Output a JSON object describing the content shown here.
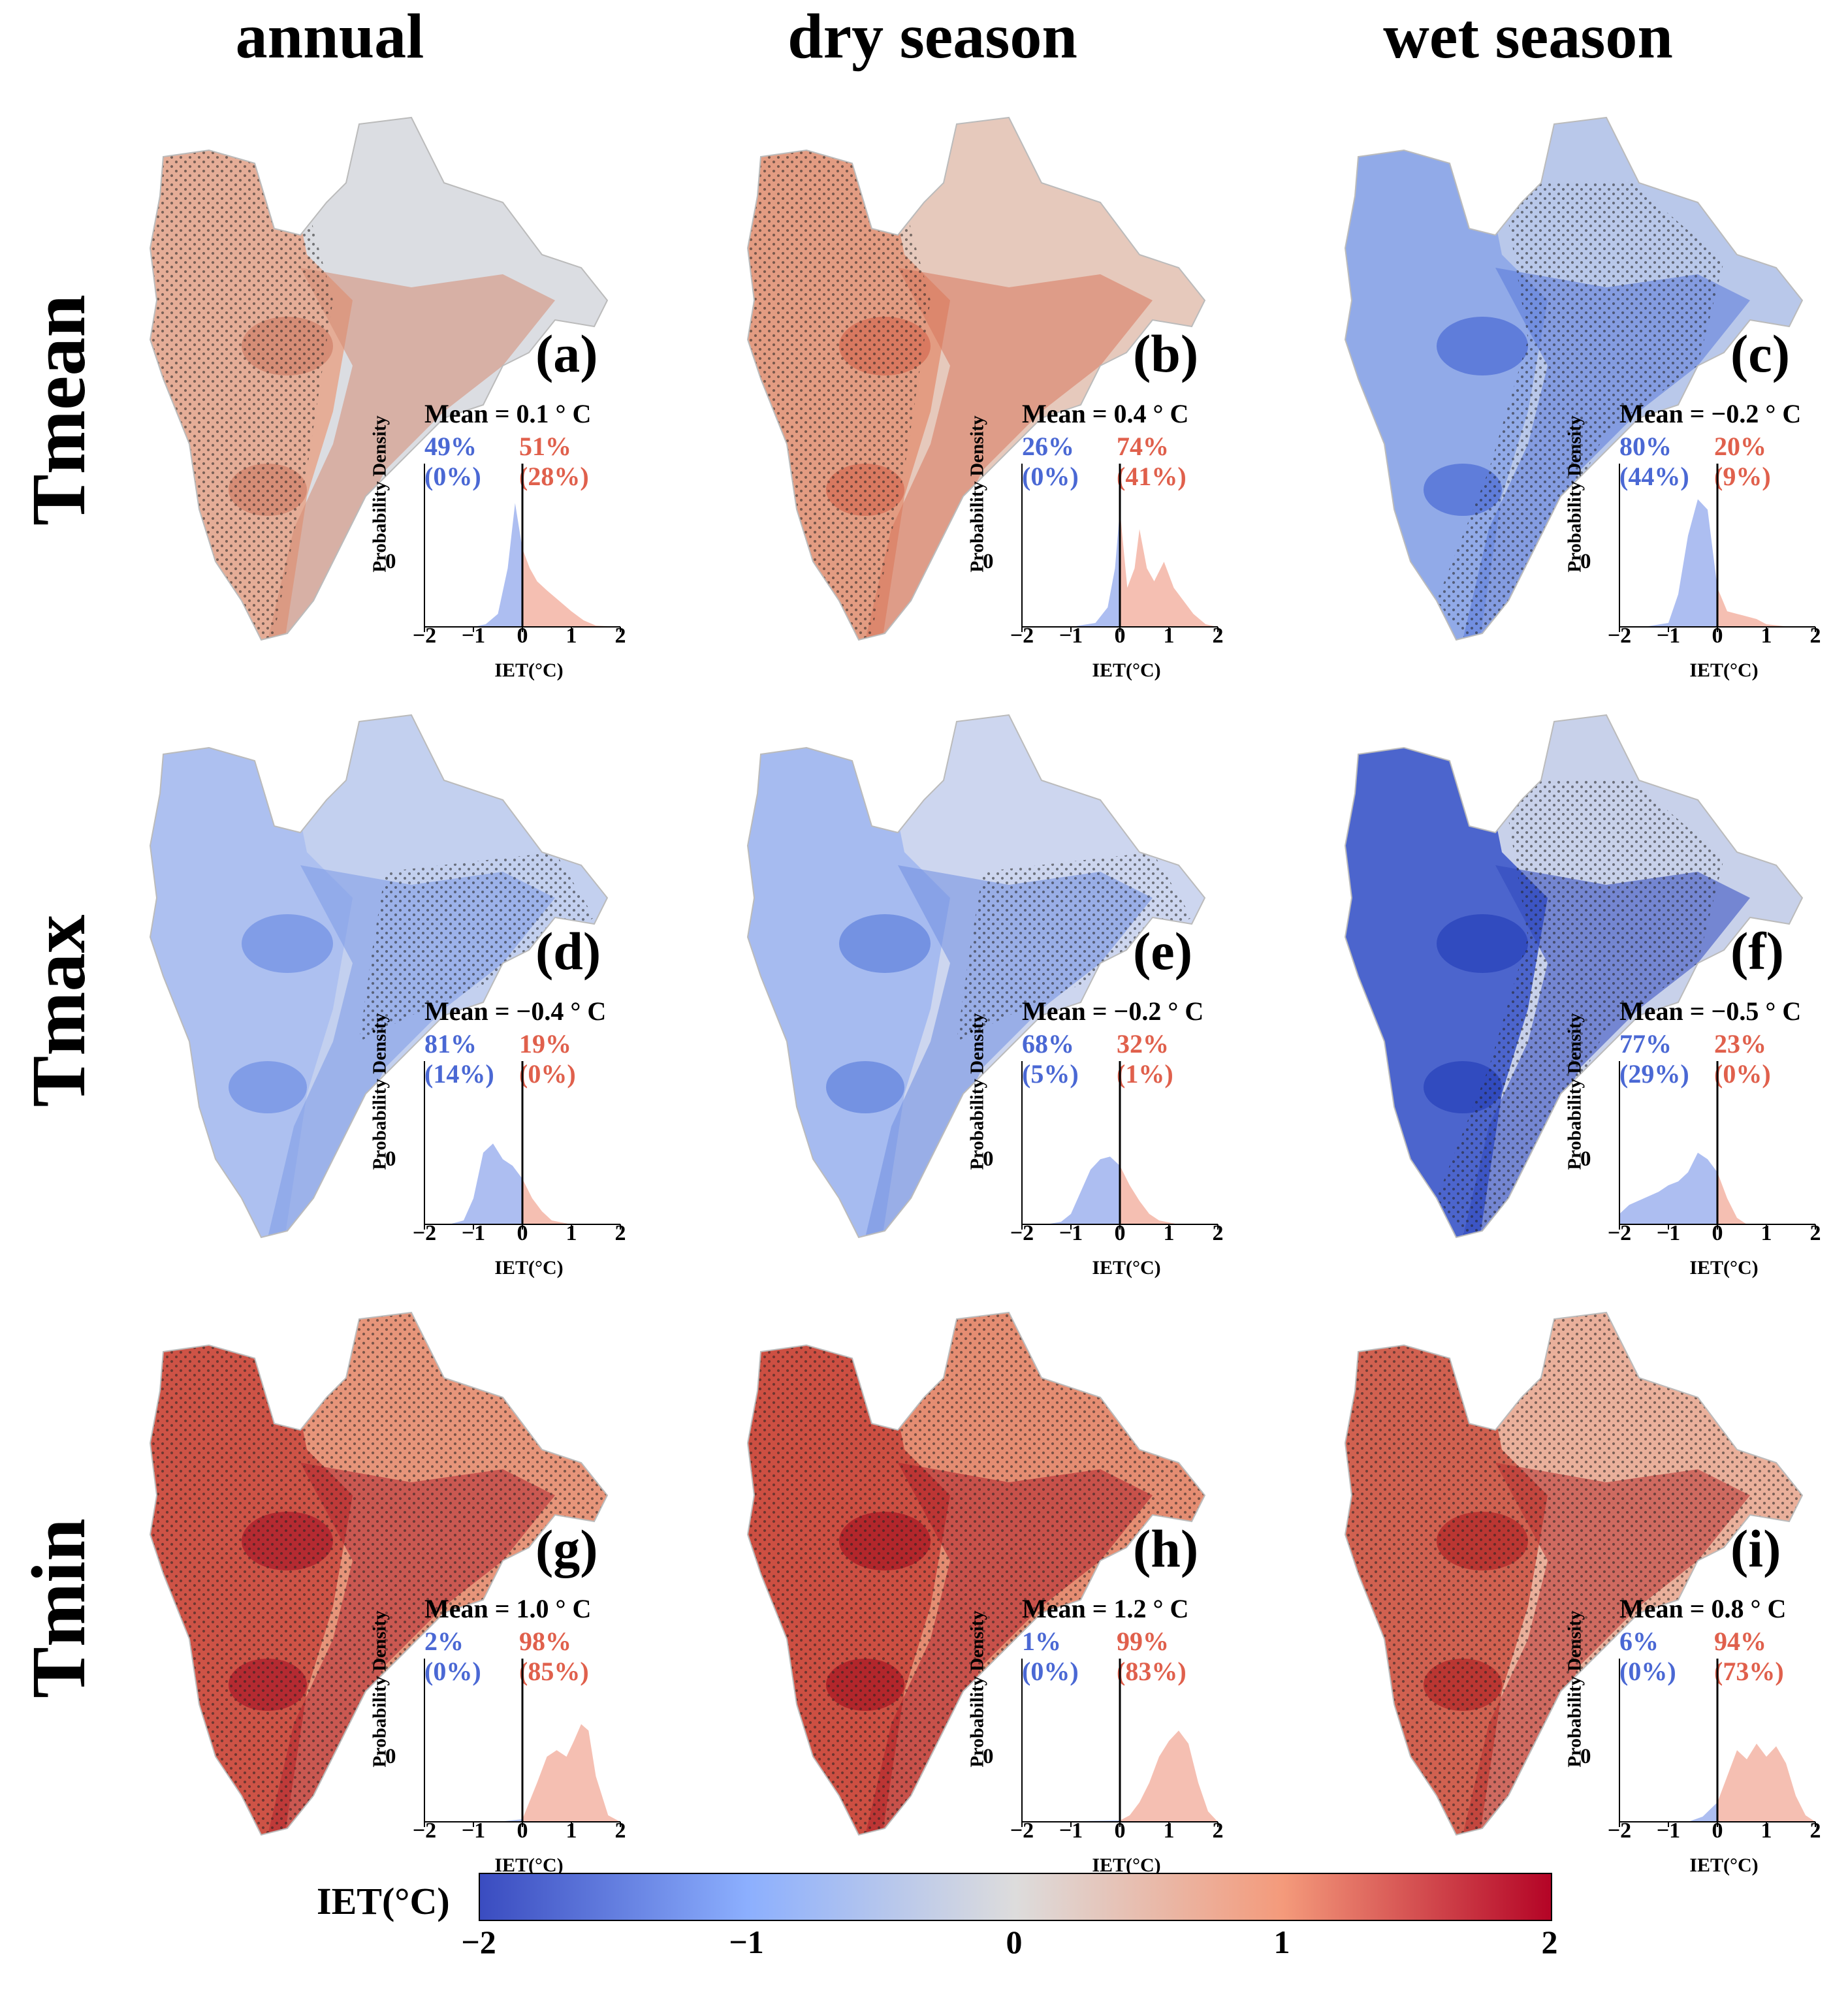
{
  "columns": [
    "annual",
    "dry season",
    "wet season"
  ],
  "rows": [
    "Tmean",
    "Tmax",
    "Tmin"
  ],
  "colorbar": {
    "label": "IET(°C)",
    "ticks": [
      "−2",
      "−1",
      "0",
      "1",
      "2"
    ],
    "colors": [
      "#3a4cc0",
      "#8caffe",
      "#dddcdc",
      "#f49a7b",
      "#b40426"
    ]
  },
  "inset_axes": {
    "ylabel": "Probability Density",
    "xlabel": "IET(°C)",
    "ytick": "0",
    "xticks": [
      "−2",
      "−1",
      "0",
      "1",
      "2"
    ]
  },
  "chart_data": [
    {
      "type": "area",
      "panel": "(a)",
      "row": "Tmean",
      "column": "annual",
      "mean_text": "Mean = 0.1 ° C",
      "neg_pct": "49%",
      "neg_sig": "(0%)",
      "pos_pct": "51%",
      "pos_sig": "(28%)",
      "xlim": [
        -2,
        2
      ],
      "x": [
        -2,
        -1.5,
        -1,
        -0.75,
        -0.5,
        -0.3,
        -0.15,
        0,
        0.15,
        0.3,
        0.5,
        0.75,
        1,
        1.25,
        1.5,
        2
      ],
      "density": [
        0,
        0,
        0,
        0.02,
        0.1,
        0.45,
        0.95,
        0.6,
        0.45,
        0.35,
        0.28,
        0.2,
        0.12,
        0.05,
        0.01,
        0
      ]
    },
    {
      "type": "area",
      "panel": "(b)",
      "row": "Tmean",
      "column": "dry season",
      "mean_text": "Mean = 0.4 ° C",
      "neg_pct": "26%",
      "neg_sig": "(0%)",
      "pos_pct": "74%",
      "pos_sig": "(41%)",
      "xlim": [
        -2,
        2
      ],
      "x": [
        -2,
        -1.5,
        -1,
        -0.5,
        -0.25,
        -0.1,
        0,
        0.15,
        0.3,
        0.4,
        0.55,
        0.7,
        0.9,
        1.1,
        1.3,
        1.5,
        1.75,
        2
      ],
      "density": [
        0,
        0,
        0,
        0.03,
        0.15,
        0.45,
        0.9,
        0.3,
        0.45,
        0.75,
        0.45,
        0.35,
        0.5,
        0.3,
        0.2,
        0.1,
        0.02,
        0
      ]
    },
    {
      "type": "area",
      "panel": "(c)",
      "row": "Tmean",
      "column": "wet season",
      "mean_text": "Mean = −0.2 ° C",
      "neg_pct": "80%",
      "neg_sig": "(44%)",
      "pos_pct": "20%",
      "pos_sig": "(9%)",
      "xlim": [
        -2,
        2
      ],
      "x": [
        -2,
        -1.5,
        -1,
        -0.8,
        -0.6,
        -0.4,
        -0.2,
        0,
        0.2,
        0.4,
        0.6,
        0.8,
        1,
        1.5,
        2
      ],
      "density": [
        0,
        0,
        0.03,
        0.25,
        0.7,
        0.98,
        0.9,
        0.3,
        0.12,
        0.1,
        0.08,
        0.06,
        0.02,
        0,
        0
      ]
    },
    {
      "type": "area",
      "panel": "(d)",
      "row": "Tmax",
      "column": "annual",
      "mean_text": "Mean = −0.4 ° C",
      "neg_pct": "81%",
      "neg_sig": "(14%)",
      "pos_pct": "19%",
      "pos_sig": "(0%)",
      "xlim": [
        -2,
        2
      ],
      "x": [
        -2,
        -1.5,
        -1.2,
        -1,
        -0.8,
        -0.6,
        -0.4,
        -0.2,
        0,
        0.2,
        0.4,
        0.6,
        1,
        1.5,
        2
      ],
      "density": [
        0,
        0,
        0.03,
        0.2,
        0.55,
        0.62,
        0.5,
        0.45,
        0.35,
        0.2,
        0.1,
        0.03,
        0,
        0,
        0
      ]
    },
    {
      "type": "area",
      "panel": "(e)",
      "row": "Tmax",
      "column": "dry season",
      "mean_text": "Mean = −0.2 ° C",
      "neg_pct": "68%",
      "neg_sig": "(5%)",
      "pos_pct": "32%",
      "pos_sig": "(1%)",
      "xlim": [
        -2,
        2
      ],
      "x": [
        -2,
        -1.5,
        -1.2,
        -1,
        -0.8,
        -0.6,
        -0.4,
        -0.2,
        0,
        0.2,
        0.4,
        0.6,
        0.8,
        1.2,
        1.5,
        2
      ],
      "density": [
        0,
        0,
        0.02,
        0.08,
        0.25,
        0.42,
        0.5,
        0.52,
        0.45,
        0.3,
        0.18,
        0.08,
        0.03,
        0,
        0,
        0
      ]
    },
    {
      "type": "area",
      "panel": "(f)",
      "row": "Tmax",
      "column": "wet season",
      "mean_text": "Mean = −0.5 ° C",
      "neg_pct": "77%",
      "neg_sig": "(29%)",
      "pos_pct": "23%",
      "pos_sig": "(0%)",
      "xlim": [
        -2,
        2
      ],
      "x": [
        -2,
        -1.8,
        -1.5,
        -1.2,
        -1,
        -0.8,
        -0.6,
        -0.4,
        -0.2,
        0,
        0.2,
        0.4,
        0.6,
        1,
        2
      ],
      "density": [
        0.08,
        0.15,
        0.2,
        0.25,
        0.3,
        0.33,
        0.4,
        0.55,
        0.5,
        0.4,
        0.2,
        0.05,
        0,
        0,
        0
      ]
    },
    {
      "type": "area",
      "panel": "(g)",
      "row": "Tmin",
      "column": "annual",
      "mean_text": "Mean = 1.0 ° C",
      "neg_pct": "2%",
      "neg_sig": "(0%)",
      "pos_pct": "98%",
      "pos_sig": "(85%)",
      "xlim": [
        -2,
        2
      ],
      "x": [
        -2,
        -0.5,
        0,
        0.3,
        0.5,
        0.7,
        0.9,
        1.05,
        1.2,
        1.35,
        1.5,
        1.75,
        2
      ],
      "density": [
        0,
        0,
        0.02,
        0.3,
        0.5,
        0.55,
        0.5,
        0.62,
        0.75,
        0.7,
        0.35,
        0.05,
        0
      ]
    },
    {
      "type": "area",
      "panel": "(h)",
      "row": "Tmin",
      "column": "dry season",
      "mean_text": "Mean = 1.2 ° C",
      "neg_pct": "1%",
      "neg_sig": "(0%)",
      "pos_pct": "99%",
      "pos_sig": "(83%)",
      "xlim": [
        -2,
        2
      ],
      "x": [
        -2,
        0,
        0.2,
        0.4,
        0.6,
        0.8,
        1,
        1.2,
        1.4,
        1.6,
        1.8,
        2
      ],
      "density": [
        0,
        0.01,
        0.05,
        0.15,
        0.3,
        0.5,
        0.62,
        0.7,
        0.6,
        0.3,
        0.08,
        0
      ]
    },
    {
      "type": "area",
      "panel": "(i)",
      "row": "Tmin",
      "column": "wet season",
      "mean_text": "Mean = 0.8 ° C",
      "neg_pct": "6%",
      "neg_sig": "(0%)",
      "pos_pct": "94%",
      "pos_sig": "(73%)",
      "xlim": [
        -2,
        2
      ],
      "x": [
        -2,
        -0.6,
        -0.3,
        0,
        0.2,
        0.4,
        0.6,
        0.8,
        1,
        1.2,
        1.4,
        1.6,
        1.8,
        2
      ],
      "density": [
        0,
        0,
        0.04,
        0.15,
        0.35,
        0.55,
        0.48,
        0.6,
        0.5,
        0.58,
        0.45,
        0.2,
        0.05,
        0
      ]
    }
  ]
}
